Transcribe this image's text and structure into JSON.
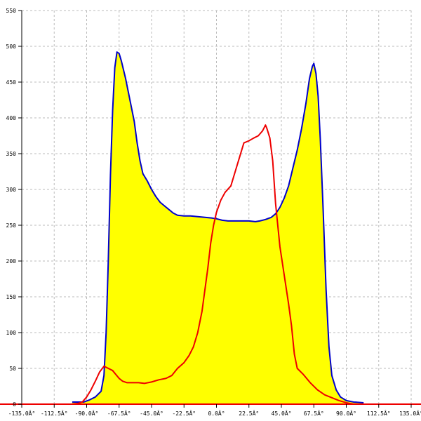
{
  "chart_data": {
    "type": "area",
    "title": "",
    "xlabel": "",
    "ylabel": "",
    "xlim": [
      -135,
      135
    ],
    "ylim": [
      0,
      550
    ],
    "grid": true,
    "x_ticks": [
      -135,
      -112.5,
      -90,
      -67.5,
      -45,
      -22.5,
      0,
      22.5,
      45,
      67.5,
      90,
      112.5,
      135
    ],
    "x_tick_labels": [
      "-135.0Â°",
      "-112.5Â°",
      "-90.0Â°",
      "-67.5Â°",
      "-45.0Â°",
      "-22.5Â°",
      "0.0Â°",
      "22.5Â°",
      "45.0Â°",
      "67.5Â°",
      "90.0Â°",
      "112.5Â°",
      "135.0Â°"
    ],
    "y_ticks": [
      0,
      50,
      100,
      150,
      200,
      250,
      300,
      350,
      400,
      450,
      500,
      550
    ],
    "y_tick_labels": [
      "0",
      "50",
      "100",
      "150",
      "200",
      "250",
      "300",
      "350",
      "400",
      "450",
      "500",
      "550"
    ],
    "series": [
      {
        "color": "#0000cc",
        "fill": "#ffff00",
        "points": [
          [
            -100,
            3
          ],
          [
            -96,
            3
          ],
          [
            -92,
            3
          ],
          [
            -88,
            6
          ],
          [
            -84,
            10
          ],
          [
            -80,
            18
          ],
          [
            -78,
            40
          ],
          [
            -76.5,
            100
          ],
          [
            -75,
            200
          ],
          [
            -73.5,
            320
          ],
          [
            -72,
            410
          ],
          [
            -70.5,
            470
          ],
          [
            -69,
            492
          ],
          [
            -67.5,
            490
          ],
          [
            -66,
            480
          ],
          [
            -63,
            455
          ],
          [
            -60,
            425
          ],
          [
            -57,
            395
          ],
          [
            -55,
            365
          ],
          [
            -53,
            340
          ],
          [
            -51,
            322
          ],
          [
            -48,
            312
          ],
          [
            -45,
            300
          ],
          [
            -42,
            290
          ],
          [
            -39,
            282
          ],
          [
            -36,
            277
          ],
          [
            -33,
            272
          ],
          [
            -30,
            267
          ],
          [
            -27,
            264
          ],
          [
            -22.5,
            263
          ],
          [
            -18,
            263
          ],
          [
            -13,
            262
          ],
          [
            -8,
            261
          ],
          [
            -3,
            260
          ],
          [
            0,
            259
          ],
          [
            4,
            257
          ],
          [
            8,
            256
          ],
          [
            13,
            256
          ],
          [
            18,
            256
          ],
          [
            22.5,
            256
          ],
          [
            27,
            255
          ],
          [
            30,
            256
          ],
          [
            34,
            258
          ],
          [
            38,
            261
          ],
          [
            41,
            266
          ],
          [
            44,
            275
          ],
          [
            47,
            288
          ],
          [
            50,
            305
          ],
          [
            53,
            330
          ],
          [
            56,
            355
          ],
          [
            59,
            385
          ],
          [
            62,
            420
          ],
          [
            64.5,
            455
          ],
          [
            66.5,
            472
          ],
          [
            67.5,
            476
          ],
          [
            69,
            462
          ],
          [
            70.5,
            430
          ],
          [
            72,
            370
          ],
          [
            74,
            270
          ],
          [
            76,
            160
          ],
          [
            78,
            80
          ],
          [
            80,
            40
          ],
          [
            83,
            20
          ],
          [
            86,
            10
          ],
          [
            90,
            5
          ],
          [
            95,
            3
          ],
          [
            102,
            2
          ]
        ]
      },
      {
        "color": "#ee0000",
        "fill": "none",
        "points": [
          [
            -100,
            0
          ],
          [
            -96,
            1
          ],
          [
            -93,
            3
          ],
          [
            -90,
            10
          ],
          [
            -87,
            20
          ],
          [
            -84,
            32
          ],
          [
            -81,
            45
          ],
          [
            -78,
            53
          ],
          [
            -75,
            50
          ],
          [
            -72,
            47
          ],
          [
            -70,
            42
          ],
          [
            -67.5,
            36
          ],
          [
            -65,
            32
          ],
          [
            -62,
            30
          ],
          [
            -58,
            30
          ],
          [
            -54,
            30
          ],
          [
            -50,
            29
          ],
          [
            -45,
            31
          ],
          [
            -40,
            34
          ],
          [
            -35,
            36
          ],
          [
            -31,
            40
          ],
          [
            -27,
            50
          ],
          [
            -22.5,
            58
          ],
          [
            -19,
            68
          ],
          [
            -16,
            80
          ],
          [
            -13,
            100
          ],
          [
            -10,
            130
          ],
          [
            -8,
            160
          ],
          [
            -6,
            190
          ],
          [
            -4,
            225
          ],
          [
            -2,
            250
          ],
          [
            0,
            268
          ],
          [
            3,
            285
          ],
          [
            6,
            296
          ],
          [
            10,
            305
          ],
          [
            13,
            325
          ],
          [
            16,
            345
          ],
          [
            19,
            365
          ],
          [
            22.5,
            368
          ],
          [
            26,
            372
          ],
          [
            29,
            375
          ],
          [
            32,
            382
          ],
          [
            34,
            390
          ],
          [
            35,
            385
          ],
          [
            37,
            372
          ],
          [
            39,
            340
          ],
          [
            41,
            280
          ],
          [
            44,
            220
          ],
          [
            47,
            180
          ],
          [
            50,
            140
          ],
          [
            52,
            110
          ],
          [
            54,
            70
          ],
          [
            56,
            50
          ],
          [
            60,
            42
          ],
          [
            65,
            30
          ],
          [
            70,
            20
          ],
          [
            75,
            13
          ],
          [
            80,
            9
          ],
          [
            85,
            5
          ],
          [
            90,
            2
          ],
          [
            95,
            0
          ],
          [
            100,
            0
          ]
        ]
      }
    ]
  }
}
